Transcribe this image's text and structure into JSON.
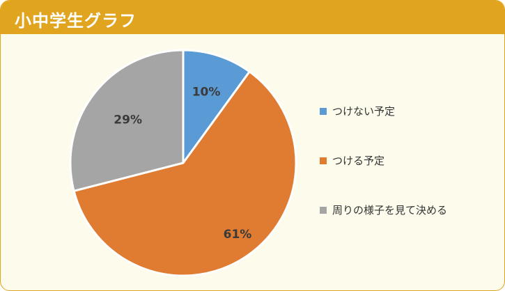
{
  "header": {
    "title": "小中学生グラフ"
  },
  "colors": {
    "header_bg": "#e0a41f",
    "card_bg": "#fdfbec",
    "slice_1": "#5b9bd5",
    "slice_2": "#e07b32",
    "slice_3": "#a5a5a5"
  },
  "chart_data": {
    "type": "pie",
    "title": "小中学生グラフ",
    "categories": [
      "つけない予定",
      "つける予定",
      "周りの様子を見て決める"
    ],
    "values": [
      10,
      61,
      29
    ],
    "unit": "%",
    "data_labels": [
      "10%",
      "61%",
      "29%"
    ],
    "colors": [
      "#5b9bd5",
      "#e07b32",
      "#a5a5a5"
    ],
    "start": "12 o'clock",
    "direction": "clockwise",
    "legend_position": "right"
  },
  "legend": {
    "items": [
      {
        "label": "つけない予定",
        "color": "#5b9bd5"
      },
      {
        "label": "つける予定",
        "color": "#e07b32"
      },
      {
        "label": "周りの様子を見て決める",
        "color": "#a5a5a5"
      }
    ]
  }
}
